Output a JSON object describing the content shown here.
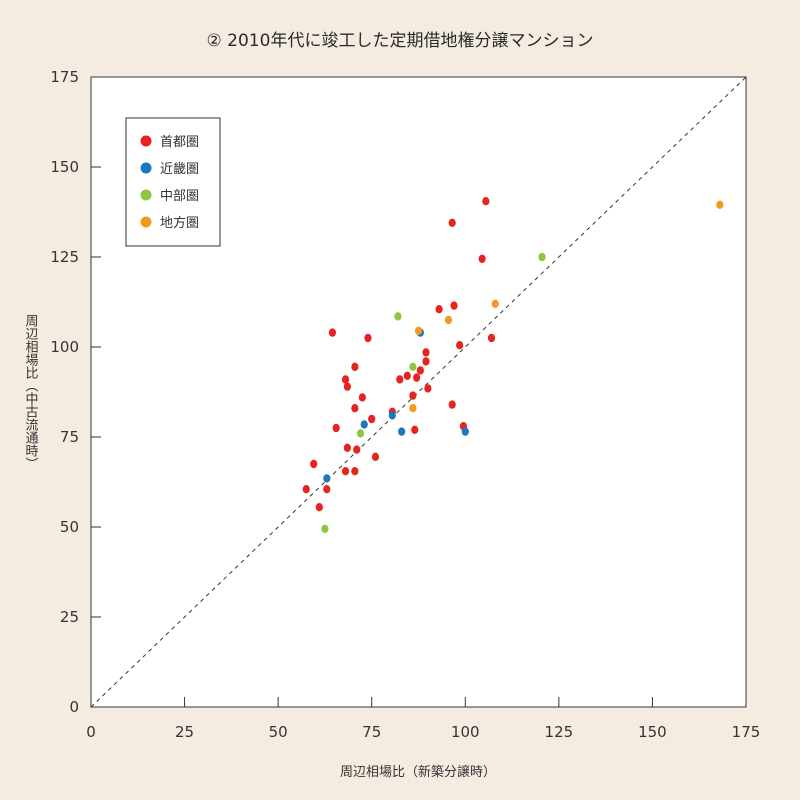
{
  "chart_data": {
    "type": "scatter",
    "title": "② 2010年代に竣工した定期借地権分譲マンション",
    "xlabel": "周辺相場比（新築分譲時）",
    "ylabel": "周辺相場比（中古流通時）",
    "xlim": [
      0,
      175
    ],
    "ylim": [
      0,
      175
    ],
    "xticks": [
      0,
      25,
      50,
      75,
      100,
      125,
      150,
      175
    ],
    "yticks": [
      0,
      25,
      50,
      75,
      100,
      125,
      150,
      175
    ],
    "reference_line": "y = x (dashed)",
    "grid": false,
    "legend_position": "top-left",
    "series": [
      {
        "name": "首都圏",
        "color": "#e52420",
        "points": [
          [
            57.5,
            60.5
          ],
          [
            59.5,
            67.5
          ],
          [
            61,
            55.5
          ],
          [
            63,
            60.5
          ],
          [
            64.5,
            104
          ],
          [
            65.5,
            77.5
          ],
          [
            68,
            65.5
          ],
          [
            68,
            91
          ],
          [
            68.5,
            72
          ],
          [
            68.5,
            89
          ],
          [
            70.5,
            94.5
          ],
          [
            70.5,
            83
          ],
          [
            70.5,
            65.5
          ],
          [
            71,
            71.5
          ],
          [
            72.5,
            86
          ],
          [
            74,
            102.5
          ],
          [
            75,
            80
          ],
          [
            76,
            69.5
          ],
          [
            80.5,
            82
          ],
          [
            82.5,
            91
          ],
          [
            84.5,
            92
          ],
          [
            86,
            86.5
          ],
          [
            86.5,
            77
          ],
          [
            87,
            91.5
          ],
          [
            88,
            93.5
          ],
          [
            89.5,
            98.5
          ],
          [
            89.5,
            96
          ],
          [
            90,
            88.5
          ],
          [
            93,
            110.5
          ],
          [
            96.5,
            84
          ],
          [
            96.5,
            134.5
          ],
          [
            97,
            111.5
          ],
          [
            98.5,
            100.5
          ],
          [
            99.5,
            78
          ],
          [
            104.5,
            124.5
          ],
          [
            105.5,
            140.5
          ],
          [
            107,
            102.5
          ]
        ]
      },
      {
        "name": "近畿圏",
        "color": "#1e76bf",
        "points": [
          [
            63,
            63.5
          ],
          [
            73,
            78.5
          ],
          [
            80.5,
            81
          ],
          [
            83,
            76.5
          ],
          [
            88,
            104
          ],
          [
            100,
            76.5
          ]
        ]
      },
      {
        "name": "中部圏",
        "color": "#8dc63f",
        "points": [
          [
            62.5,
            49.5
          ],
          [
            72,
            76
          ],
          [
            82,
            108.5
          ],
          [
            86,
            94.5
          ],
          [
            120.5,
            125
          ]
        ]
      },
      {
        "name": "地方圏",
        "color": "#f39a1e",
        "points": [
          [
            86,
            83
          ],
          [
            87.5,
            104.5
          ],
          [
            95.5,
            107.5
          ],
          [
            108,
            112
          ],
          [
            168,
            139.5
          ]
        ]
      }
    ]
  }
}
